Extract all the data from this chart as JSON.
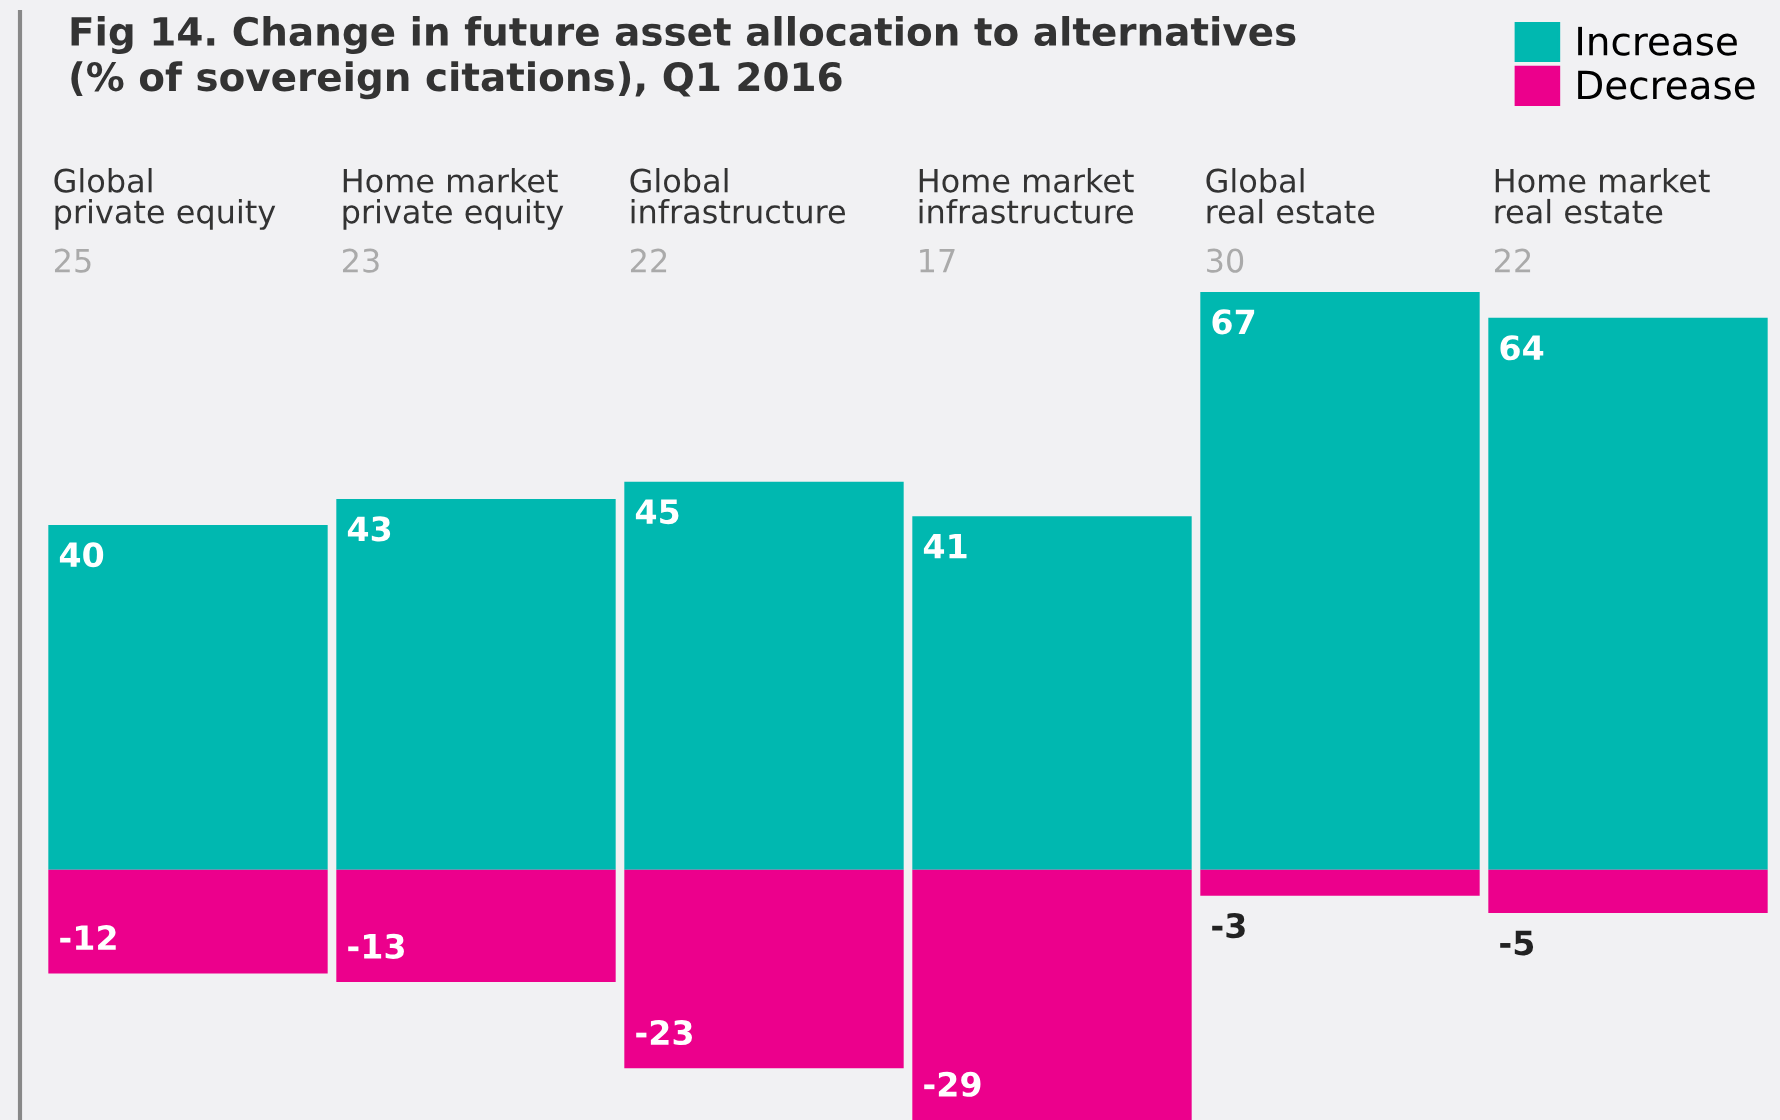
{
  "chart_data": {
    "type": "bar",
    "title": "Fig 14. Change in future asset allocation to alternatives\n(% of sovereign citations), Q1 2016",
    "categories": [
      "Global\nprivate equity",
      "Home market\nprivate equity",
      "Global\ninfrastructure",
      "Home market\ninfrastructure",
      "Global\nreal estate",
      "Home market\nreal estate"
    ],
    "series": [
      {
        "name": "Increase",
        "color": "#00b8b0",
        "values": [
          40,
          43,
          45,
          41,
          67,
          64
        ]
      },
      {
        "name": "Decrease",
        "color": "#ec008c",
        "values": [
          -12,
          -13,
          -23,
          -29,
          -3,
          -5
        ]
      }
    ],
    "annotations": [
      "25",
      "23",
      "22",
      "17",
      "30",
      "22"
    ],
    "stacked": true,
    "data_labels": true,
    "legend": "top right",
    "grid": false,
    "tick_labels": false
  }
}
